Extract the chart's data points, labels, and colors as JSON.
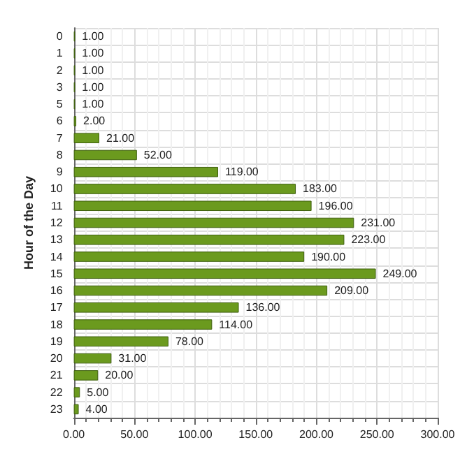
{
  "chart_data": {
    "type": "bar",
    "orientation": "horizontal",
    "ylabel": "Hour of the Day",
    "categories": [
      "0",
      "1",
      "2",
      "3",
      "5",
      "6",
      "7",
      "8",
      "9",
      "10",
      "11",
      "12",
      "13",
      "14",
      "15",
      "16",
      "17",
      "18",
      "19",
      "20",
      "21",
      "22",
      "23"
    ],
    "values": [
      1,
      1,
      1,
      1,
      1,
      2,
      21,
      52,
      119,
      183,
      196,
      231,
      223,
      190,
      249,
      209,
      136,
      114,
      78,
      31,
      20,
      5,
      4
    ],
    "value_labels": [
      "1.00",
      "1.00",
      "1.00",
      "1.00",
      "1.00",
      "2.00",
      "21.00",
      "52.00",
      "119.00",
      "183.00",
      "196.00",
      "231.00",
      "223.00",
      "190.00",
      "249.00",
      "209.00",
      "136.00",
      "114.00",
      "78.00",
      "31.00",
      "20.00",
      "5.00",
      "4.00"
    ],
    "color": "#6b9a1e",
    "xlim": [
      0,
      300
    ],
    "xticks": [
      {
        "value": 0,
        "label": "0.00"
      },
      {
        "value": 50,
        "label": "50.00"
      },
      {
        "value": 100,
        "label": "100.00"
      },
      {
        "value": 150,
        "label": "150.00"
      },
      {
        "value": 200,
        "label": "200.00"
      },
      {
        "value": 250,
        "label": "250.00"
      },
      {
        "value": 300,
        "label": "300.00"
      }
    ],
    "grid": true
  }
}
